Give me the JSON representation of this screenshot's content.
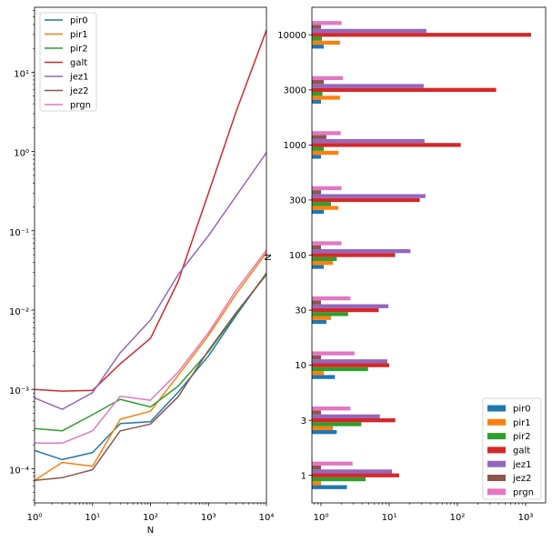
{
  "chart_data": [
    {
      "type": "line",
      "x": [
        1,
        3,
        10,
        30,
        100,
        300,
        1000,
        3000,
        10000
      ],
      "series": [
        {
          "name": "pir0",
          "color": "#1f77b4",
          "values": [
            0.00017,
            0.00013,
            0.00016,
            0.00037,
            0.00039,
            0.00092,
            0.00265,
            0.0086,
            0.0294
          ]
        },
        {
          "name": "pir1",
          "color": "#ff7f0e",
          "values": [
            7.1e-05,
            0.00012,
            0.000107,
            0.00042,
            0.00053,
            0.0015,
            0.0048,
            0.016,
            0.053
          ]
        },
        {
          "name": "pir2",
          "color": "#2ca02c",
          "values": [
            0.00032,
            0.0003,
            0.00048,
            0.00075,
            0.0006,
            0.0011,
            0.003,
            0.009,
            0.029
          ]
        },
        {
          "name": "galt",
          "color": "#d62728",
          "values": [
            0.001,
            0.00095,
            0.00097,
            0.0021,
            0.0044,
            0.023,
            0.3,
            3.2,
            34
          ]
        },
        {
          "name": "jez1",
          "color": "#9467bd",
          "values": [
            0.00078,
            0.00056,
            0.00091,
            0.0029,
            0.0075,
            0.028,
            0.087,
            0.275,
            0.97
          ]
        },
        {
          "name": "jez2",
          "color": "#8c564b",
          "values": [
            7.1e-05,
            7.7e-05,
            9.7e-05,
            0.0003,
            0.000365,
            0.00081,
            0.0031,
            0.0093,
            0.028
          ]
        },
        {
          "name": "prgn",
          "color": "#e377c2",
          "values": [
            0.00021,
            0.00021,
            0.0003,
            0.00082,
            0.00073,
            0.00165,
            0.0052,
            0.0178,
            0.057
          ]
        }
      ],
      "xlabel": "N",
      "xscale": "log",
      "yscale": "log",
      "xlim": [
        1,
        10000
      ],
      "ylim": [
        3.7e-05,
        66
      ],
      "xticks": [
        1,
        10,
        100,
        1000,
        10000
      ],
      "xtick_labels": [
        "10⁰",
        "10¹",
        "10²",
        "10³",
        "10⁴"
      ],
      "yticks": [
        0.0001,
        0.001,
        0.01,
        0.1,
        1,
        10
      ],
      "ytick_labels": [
        "10⁻⁴",
        "10⁻³",
        "10⁻²",
        "10⁻¹",
        "10⁰",
        "10¹"
      ],
      "legend": "top-left",
      "grid": false
    },
    {
      "type": "bar",
      "orientation": "horizontal",
      "categories": [
        "1",
        "3",
        "10",
        "30",
        "100",
        "300",
        "1000",
        "3000",
        "10000"
      ],
      "series": [
        {
          "name": "pir0",
          "color": "#1f77b4",
          "values": [
            2.4,
            1.7,
            1.6,
            1.2,
            1.1,
            1.1,
            1.0,
            1.0,
            1.1
          ]
        },
        {
          "name": "pir1",
          "color": "#ff7f0e",
          "values": [
            1.0,
            1.5,
            1.1,
            1.4,
            1.5,
            1.8,
            1.8,
            1.9,
            1.9
          ]
        },
        {
          "name": "pir2",
          "color": "#2ca02c",
          "values": [
            4.5,
            3.9,
            4.9,
            2.5,
            1.7,
            1.4,
            1.1,
            1.05,
            1.03
          ]
        },
        {
          "name": "galt",
          "color": "#d62728",
          "values": [
            14,
            12.3,
            10.0,
            7.0,
            12.2,
            28,
            112,
            370,
            1200
          ]
        },
        {
          "name": "jez1",
          "color": "#9467bd",
          "values": [
            11,
            7.3,
            9.4,
            9.7,
            20.5,
            34,
            33,
            32,
            35
          ]
        },
        {
          "name": "jez2",
          "color": "#8c564b",
          "values": [
            1.0,
            1.0,
            1.0,
            1.0,
            1.0,
            1.0,
            1.2,
            1.1,
            1.0
          ]
        },
        {
          "name": "prgn",
          "color": "#e377c2",
          "values": [
            2.9,
            2.7,
            3.1,
            2.7,
            2.0,
            2.0,
            1.95,
            2.1,
            2.0
          ]
        }
      ],
      "ylabel": "N",
      "xscale": "log",
      "xlim": [
        0.736,
        1965
      ],
      "xticks": [
        1,
        10,
        100,
        1000
      ],
      "xtick_labels": [
        "10⁰",
        "10¹",
        "10²",
        "10³"
      ],
      "legend": "bottom-right",
      "grid": false
    }
  ]
}
